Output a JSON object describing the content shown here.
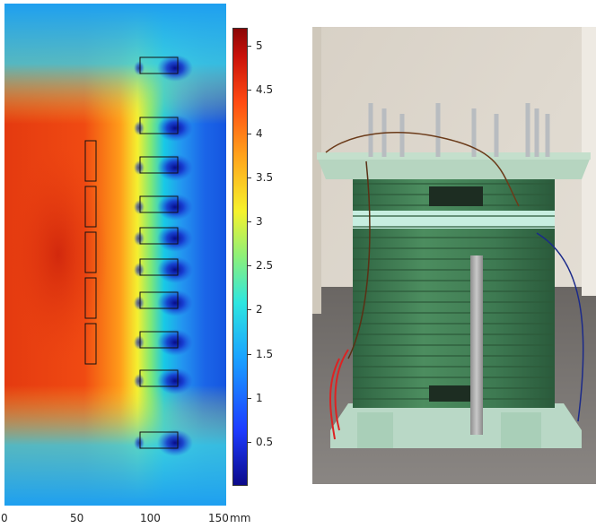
{
  "chart_data": {
    "type": "heatmap",
    "colorbar": {
      "ticks": [
        "5",
        "4.5",
        "4",
        "3.5",
        "3",
        "2.5",
        "2",
        "1.5",
        "1",
        "0.5"
      ],
      "tick_values": [
        5,
        4.5,
        4,
        3.5,
        3,
        2.5,
        2,
        1.5,
        1,
        0.5
      ],
      "range": [
        0,
        5.2
      ],
      "colormap": "rainbow (dark blue to dark red)"
    },
    "x_axis": {
      "ticks": [
        "0",
        "50",
        "100",
        "150"
      ],
      "tick_values": [
        0,
        50,
        100,
        150
      ],
      "unit": "mm",
      "range": [
        0,
        150
      ]
    },
    "coils": {
      "inner_column_count": 5,
      "outer_column_count": 12
    }
  },
  "colors": {
    "high": "#c81e0a",
    "low": "#0a1a9a",
    "photo_wall": "#dcd6cc",
    "photo_fiberglass": "#3f7a52",
    "photo_ruler": "#a9a9a9"
  }
}
